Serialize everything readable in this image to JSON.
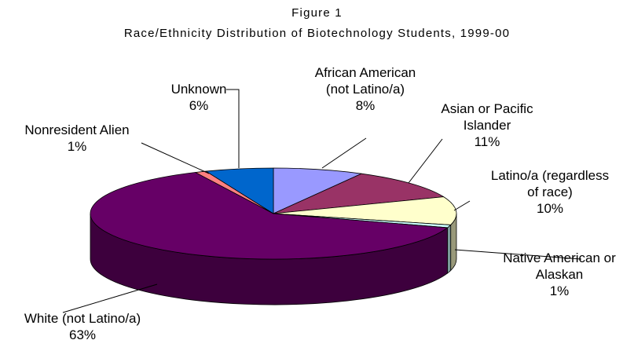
{
  "chart_data": {
    "type": "pie3d",
    "title": "Figure 1",
    "subtitle": "Race/Ethnicity Distribution of Biotechnology Students, 1999-00",
    "categories": [
      "African American\n(not Latino/a)",
      "Asian or Pacific\nIslander",
      "Latino/a (regardless\nof race)",
      "Native American or\nAlaskan",
      "White (not Latino/a)",
      "Nonresident Alien",
      "Unknown"
    ],
    "values": [
      8,
      11,
      10,
      1,
      63,
      1,
      6
    ],
    "value_labels": [
      "8%",
      "11%",
      "10%",
      "1%",
      "63%",
      "1%",
      "6%"
    ],
    "colors": [
      "#9999ff",
      "#993366",
      "#ffffcc",
      "#ccffff",
      "#660066",
      "#ff8080",
      "#0066cc"
    ]
  }
}
